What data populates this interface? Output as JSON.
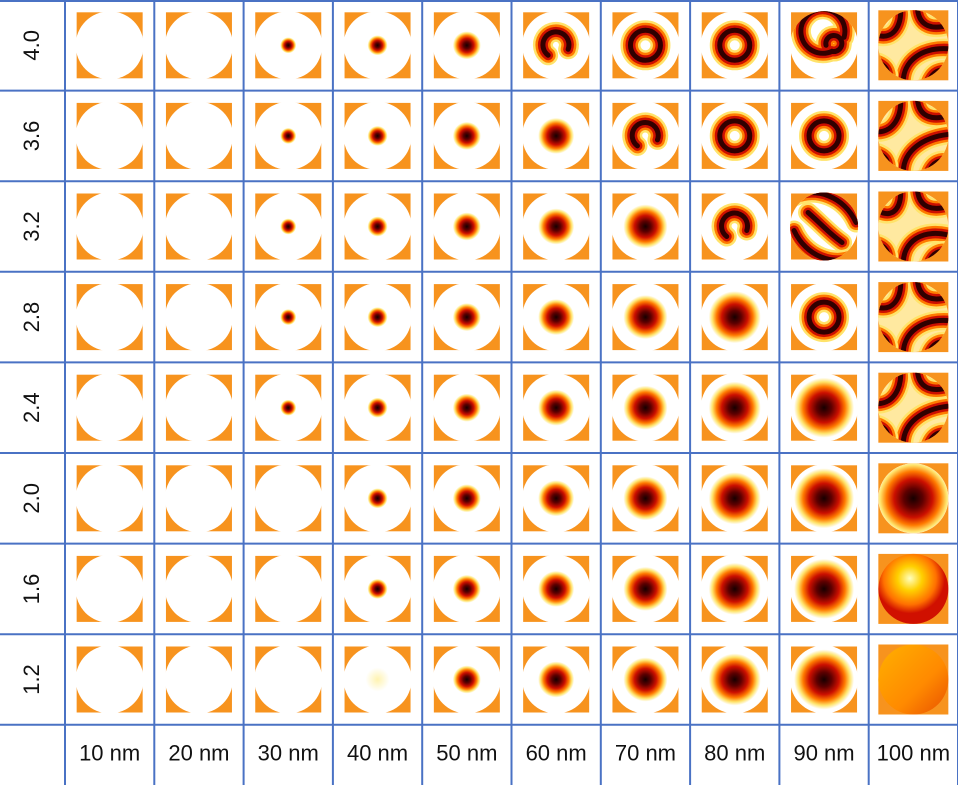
{
  "table": {
    "row_labels": [
      "4.0",
      "3.6",
      "3.2",
      "2.8",
      "2.4",
      "2.0",
      "1.6",
      "1.2"
    ],
    "column_labels": [
      "10 nm",
      "20 nm",
      "30 nm",
      "40 nm",
      "50 nm",
      "60 nm",
      "70 nm",
      "80 nm",
      "90 nm",
      "100 nm"
    ]
  }
}
